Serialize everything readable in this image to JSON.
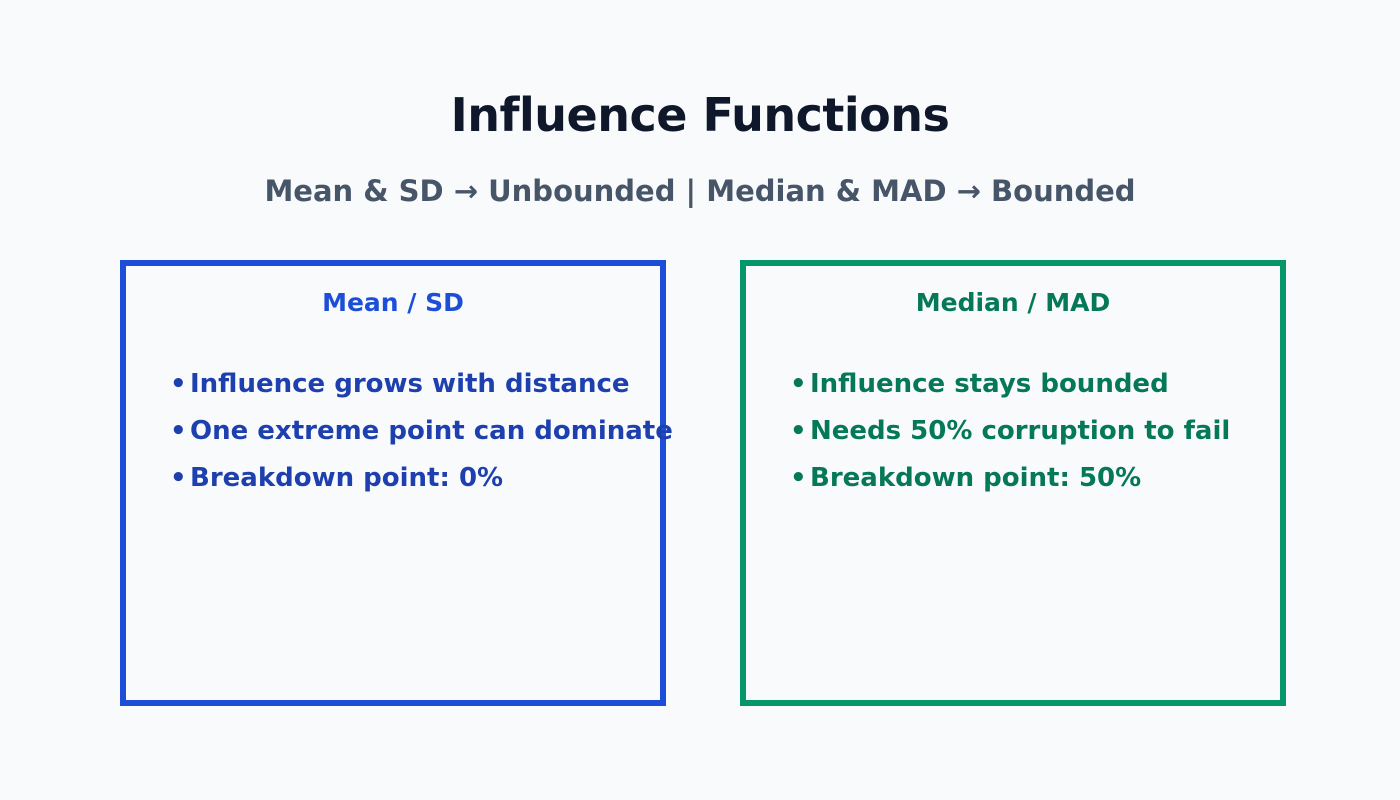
{
  "header": {
    "title": "Influence Functions",
    "subtitle": "Mean & SD → Unbounded | Median & MAD → Bounded"
  },
  "panels": [
    {
      "title": "Mean / SD",
      "border_color": "#1d4ed8",
      "bullet": "•",
      "items": [
        "Influence grows with distance",
        "One extreme point can dominate",
        "Breakdown point: 0%"
      ]
    },
    {
      "title": "Median / MAD",
      "border_color": "#059669",
      "bullet": "•",
      "items": [
        "Influence stays bounded",
        "Needs 50% corruption to fail",
        "Breakdown point: 50%"
      ]
    }
  ]
}
